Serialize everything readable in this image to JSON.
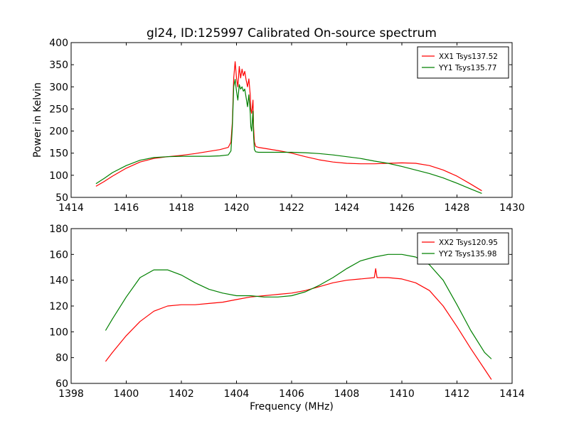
{
  "figure": {
    "title": "gl24, ID:125997 Calibrated On-source spectrum",
    "xlabel": "Frequency (MHz)",
    "ylabel": "Power in Kelvin"
  },
  "chart_data": [
    {
      "type": "line",
      "title": "gl24, ID:125997 Calibrated On-source spectrum",
      "xlabel": "",
      "ylabel": "Power in Kelvin",
      "xlim": [
        1414,
        1430
      ],
      "ylim": [
        50,
        400
      ],
      "xticks": [
        1414,
        1416,
        1418,
        1420,
        1422,
        1424,
        1426,
        1428,
        1430
      ],
      "yticks": [
        50,
        100,
        150,
        200,
        250,
        300,
        350,
        400
      ],
      "grid": false,
      "legend_position": "upper right",
      "series": [
        {
          "name": "XX1 Tsys137.52",
          "color": "#ff0000",
          "x": [
            1414.9,
            1415.2,
            1415.5,
            1416.0,
            1416.5,
            1417.0,
            1417.5,
            1418.0,
            1418.5,
            1419.0,
            1419.4,
            1419.7,
            1419.8,
            1419.85,
            1419.9,
            1419.95,
            1420.0,
            1420.05,
            1420.1,
            1420.15,
            1420.2,
            1420.25,
            1420.3,
            1420.35,
            1420.4,
            1420.45,
            1420.5,
            1420.52,
            1420.55,
            1420.6,
            1420.62,
            1420.65,
            1420.7,
            1420.8,
            1421.0,
            1421.5,
            1422.0,
            1422.5,
            1423.0,
            1423.5,
            1424.0,
            1424.5,
            1425.0,
            1425.5,
            1426.0,
            1426.5,
            1427.0,
            1427.5,
            1428.0,
            1428.5,
            1428.9
          ],
          "y": [
            75,
            86,
            98,
            116,
            130,
            138,
            142,
            145,
            149,
            154,
            158,
            163,
            175,
            220,
            320,
            357,
            320,
            300,
            346,
            320,
            340,
            325,
            335,
            315,
            300,
            318,
            280,
            250,
            240,
            270,
            210,
            175,
            165,
            163,
            161,
            156,
            150,
            142,
            135,
            130,
            127,
            126,
            126,
            127,
            128,
            127,
            122,
            112,
            98,
            80,
            65
          ]
        },
        {
          "name": "YY1 Tsys135.77",
          "color": "#008000",
          "x": [
            1414.9,
            1415.2,
            1415.5,
            1416.0,
            1416.5,
            1417.0,
            1417.5,
            1418.0,
            1418.5,
            1419.0,
            1419.4,
            1419.7,
            1419.8,
            1419.85,
            1419.9,
            1419.95,
            1420.0,
            1420.05,
            1420.1,
            1420.15,
            1420.2,
            1420.25,
            1420.3,
            1420.35,
            1420.4,
            1420.45,
            1420.5,
            1420.52,
            1420.55,
            1420.6,
            1420.62,
            1420.65,
            1420.7,
            1420.8,
            1421.0,
            1421.5,
            1422.0,
            1422.5,
            1423.0,
            1423.5,
            1424.0,
            1424.5,
            1425.0,
            1425.5,
            1426.0,
            1426.5,
            1427.0,
            1427.5,
            1428.0,
            1428.5,
            1428.9
          ],
          "y": [
            81,
            93,
            106,
            122,
            134,
            140,
            142,
            143,
            143,
            143,
            144,
            146,
            155,
            210,
            300,
            317,
            290,
            270,
            305,
            295,
            300,
            290,
            295,
            275,
            255,
            282,
            240,
            210,
            200,
            245,
            190,
            158,
            153,
            152,
            152,
            152,
            152,
            151,
            149,
            146,
            142,
            138,
            132,
            127,
            120,
            112,
            104,
            94,
            82,
            69,
            59
          ]
        }
      ]
    },
    {
      "type": "line",
      "title": "",
      "xlabel": "Frequency (MHz)",
      "ylabel": "",
      "xlim": [
        1398,
        1414
      ],
      "ylim": [
        60,
        180
      ],
      "xticks": [
        1398,
        1400,
        1402,
        1404,
        1406,
        1408,
        1410,
        1412,
        1414
      ],
      "yticks": [
        60,
        80,
        100,
        120,
        140,
        160,
        180
      ],
      "grid": false,
      "legend_position": "upper right",
      "series": [
        {
          "name": "XX2 Tsys120.95",
          "color": "#ff0000",
          "x": [
            1399.25,
            1399.5,
            1400.0,
            1400.5,
            1401.0,
            1401.5,
            1402.0,
            1402.5,
            1403.0,
            1403.5,
            1404.0,
            1404.5,
            1405.0,
            1405.5,
            1406.0,
            1406.5,
            1407.0,
            1407.5,
            1408.0,
            1408.5,
            1409.0,
            1409.05,
            1409.1,
            1409.15,
            1409.5,
            1410.0,
            1410.5,
            1411.0,
            1411.5,
            1412.0,
            1412.5,
            1413.0,
            1413.25
          ],
          "y": [
            77,
            84,
            97,
            108,
            116,
            120,
            121,
            121,
            122,
            123,
            125,
            127,
            128,
            129,
            130,
            132,
            135,
            138,
            140,
            141,
            142,
            149,
            142,
            142,
            142,
            141,
            138,
            132,
            120,
            104,
            87,
            71,
            63
          ]
        },
        {
          "name": "YY2 Tsys135.98",
          "color": "#008000",
          "x": [
            1399.25,
            1399.5,
            1400.0,
            1400.5,
            1401.0,
            1401.5,
            1402.0,
            1402.5,
            1403.0,
            1403.5,
            1404.0,
            1404.5,
            1405.0,
            1405.5,
            1406.0,
            1406.5,
            1407.0,
            1407.5,
            1408.0,
            1408.5,
            1409.0,
            1409.5,
            1410.0,
            1410.5,
            1411.0,
            1411.5,
            1412.0,
            1412.5,
            1413.0,
            1413.25
          ],
          "y": [
            101,
            110,
            127,
            142,
            148,
            148,
            144,
            138,
            133,
            130,
            128,
            128,
            127,
            127,
            128,
            131,
            136,
            142,
            149,
            155,
            158,
            160,
            160,
            158,
            152,
            140,
            121,
            101,
            84,
            79
          ]
        }
      ]
    }
  ]
}
